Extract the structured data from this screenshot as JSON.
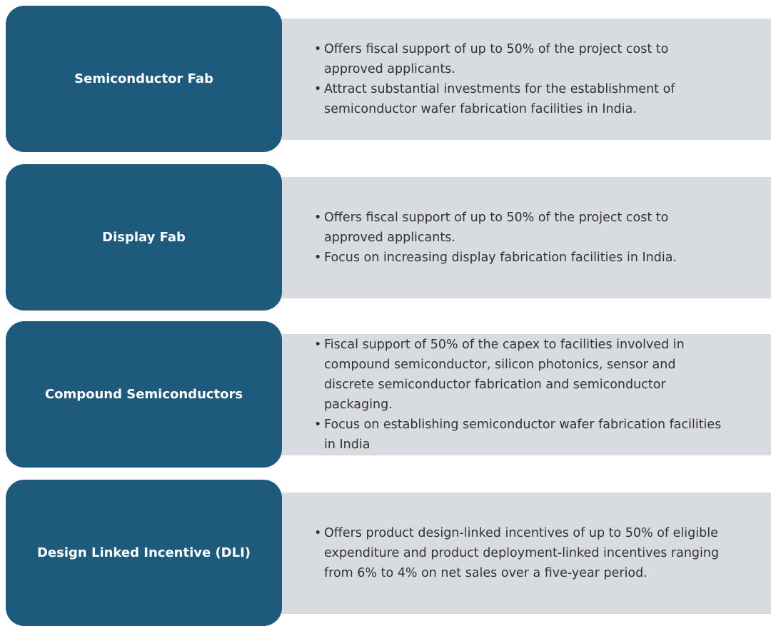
{
  "rows": [
    {
      "title": "Semiconductor Fab",
      "bullets": [
        "Offers fiscal support of up to 50% of the project cost to approved applicants.",
        "Attract substantial investments for the establishment of semiconductor wafer fabrication facilities in India."
      ]
    },
    {
      "title": "Display Fab",
      "bullets": [
        "Offers fiscal support of up to 50% of the project cost to approved applicants.",
        "Focus on increasing display fabrication facilities in India."
      ]
    },
    {
      "title": "Compound Semiconductors",
      "bullets": [
        "Fiscal support of 50% of the capex to facilities involved in compound semiconductor, silicon photonics, sensor and discrete semiconductor fabrication and semiconductor packaging.",
        "Focus on establishing semiconductor wafer fabrication facilities in India"
      ]
    },
    {
      "title": "Design Linked Incentive (DLI)",
      "bullets": [
        "Offers product design-linked incentives of up to 50% of eligible expenditure and product deployment-linked incentives ranging from 6% to 4% on net sales over a five-year period."
      ]
    }
  ]
}
